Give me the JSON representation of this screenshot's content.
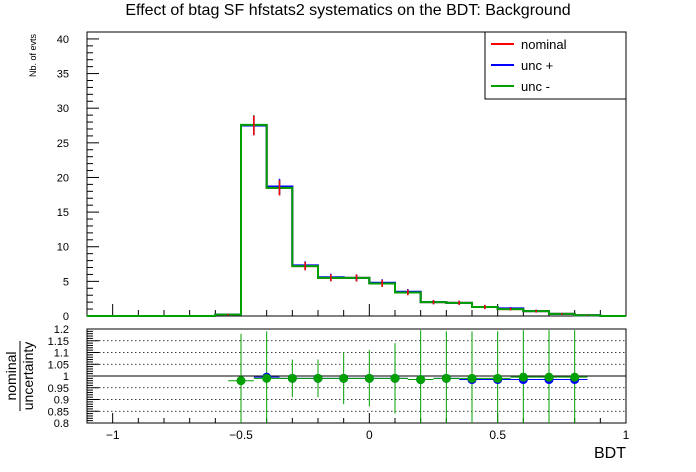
{
  "chart_data": {
    "type": "line",
    "title": "Effect of btag SF hfstats2 systematics on the BDT: Background",
    "xlabel": "BDT",
    "ylabel": "Nb. of evts",
    "ratio_ylabel_top": "nominal",
    "ratio_ylabel_bottom": "uncertainty",
    "xlim": [
      -1.1,
      1.0
    ],
    "ylim": [
      0,
      41
    ],
    "ratio_ylim": [
      0.8,
      1.2
    ],
    "x_ticks": [
      "−1",
      "−0.5",
      "0",
      "0.5",
      "1"
    ],
    "y_ticks": [
      "0",
      "5",
      "10",
      "15",
      "20",
      "25",
      "30",
      "35",
      "40"
    ],
    "ratio_y_ticks": [
      "0.8",
      "0.85",
      "0.9",
      "0.95",
      "1",
      "1.05",
      "1.1",
      "1.15",
      "1.2"
    ],
    "bin_edges": [
      -1.1,
      -0.6,
      -0.5,
      -0.4,
      -0.3,
      -0.2,
      -0.1,
      0.0,
      0.1,
      0.2,
      0.3,
      0.4,
      0.5,
      0.6,
      0.7,
      0.8,
      0.9,
      1.0
    ],
    "series": [
      {
        "name": "nominal",
        "color": "#ff0000",
        "values": [
          0,
          0.2,
          27.5,
          18.5,
          7.2,
          5.5,
          5.5,
          4.7,
          3.4,
          2.0,
          1.9,
          1.3,
          1.0,
          0.7,
          0.3,
          0.1,
          0.0
        ],
        "errors": [
          0,
          0.1,
          1.4,
          1.1,
          0.6,
          0.5,
          0.5,
          0.5,
          0.4,
          0.3,
          0.3,
          0.3,
          0.2,
          0.2,
          0.1,
          0.05,
          0.0
        ]
      },
      {
        "name": "unc +",
        "color": "#0000ff",
        "values": [
          0,
          0.2,
          27.5,
          18.7,
          7.3,
          5.6,
          5.5,
          4.8,
          3.5,
          2.0,
          1.9,
          1.3,
          1.1,
          0.7,
          0.3,
          0.1,
          0.0
        ]
      },
      {
        "name": "unc -",
        "color": "#00a000",
        "values": [
          0,
          0.2,
          27.6,
          18.5,
          7.2,
          5.5,
          5.5,
          4.7,
          3.4,
          2.0,
          1.9,
          1.3,
          1.0,
          0.7,
          0.3,
          0.1,
          0.0
        ]
      }
    ],
    "ratio_series": [
      {
        "name": "unc +",
        "color": "#0000ff",
        "x": [
          -0.4,
          -0.3,
          -0.2,
          -0.1,
          0.0,
          0.1,
          0.2,
          0.3,
          0.4,
          0.5,
          0.6,
          0.7,
          0.8
        ],
        "values": [
          0.995,
          0.99,
          0.99,
          0.99,
          0.99,
          0.99,
          0.985,
          0.99,
          0.985,
          0.985,
          0.985,
          0.985,
          0.985
        ]
      },
      {
        "name": "unc -",
        "color": "#00a000",
        "x": [
          -0.5,
          -0.4,
          -0.3,
          -0.2,
          -0.1,
          0.0,
          0.1,
          0.2,
          0.3,
          0.4,
          0.5,
          0.6,
          0.7,
          0.8
        ],
        "values": [
          0.98,
          0.99,
          0.99,
          0.99,
          0.99,
          0.99,
          0.99,
          0.985,
          0.99,
          0.99,
          0.99,
          0.995,
          0.995,
          0.995
        ],
        "err_up": [
          0.2,
          0.2,
          0.08,
          0.08,
          0.11,
          0.12,
          0.15,
          0.21,
          0.2,
          0.2,
          0.2,
          0.2,
          0.2,
          0.2
        ],
        "err_down": [
          0.2,
          0.2,
          0.08,
          0.08,
          0.11,
          0.12,
          0.15,
          0.21,
          0.2,
          0.2,
          0.2,
          0.2,
          0.2,
          0.2
        ]
      }
    ],
    "legend_position": "top-right",
    "grid": "ratio-pad-horizontal-dotted"
  }
}
